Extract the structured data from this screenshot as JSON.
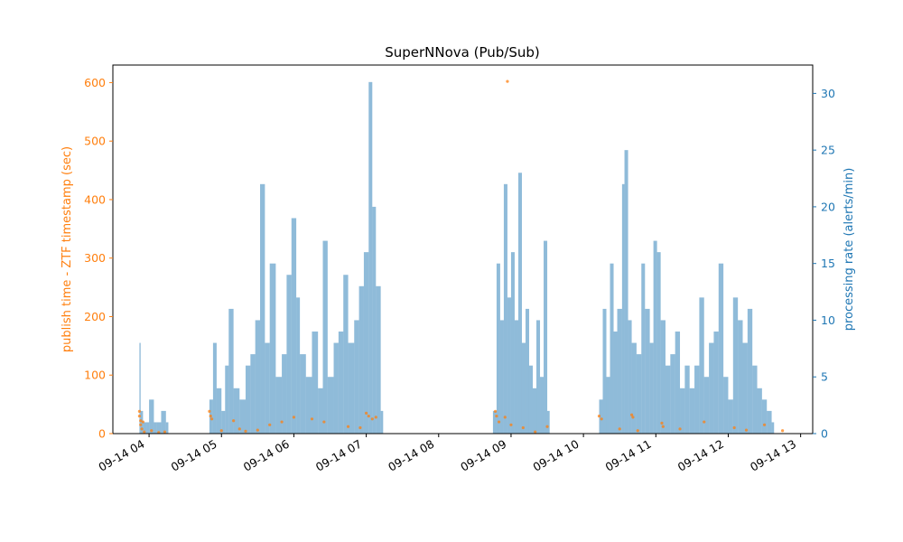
{
  "chart_data": {
    "type": "bar",
    "title": "SuperNNova (Pub/Sub)",
    "x_axis": {
      "kind": "time",
      "range": [
        "09-14 03:30",
        "09-14 13:10"
      ],
      "tick_labels": [
        "09-14 04",
        "09-14 05",
        "09-14 06",
        "09-14 07",
        "09-14 08",
        "09-14 09",
        "09-14 10",
        "09-14 11",
        "09-14 12",
        "09-14 13"
      ]
    },
    "y_left": {
      "label": "publish time - ZTF timestamp (sec)",
      "range": [
        0,
        630
      ],
      "ticks": [
        0,
        100,
        200,
        300,
        400,
        500,
        600
      ],
      "color": "#ff7f0e"
    },
    "y_right": {
      "label": "processing rate (alerts/min)",
      "range": [
        0,
        32.5
      ],
      "ticks": [
        0,
        5,
        10,
        15,
        20,
        25,
        30
      ],
      "color": "#1f77b4"
    },
    "series": [
      {
        "type": "scatter",
        "axis": "left",
        "color": "#ff7f0e",
        "points": [
          [
            "09-14 03:52",
            30
          ],
          [
            "09-14 03:52",
            38
          ],
          [
            "09-14 03:53",
            22
          ],
          [
            "09-14 03:53",
            15
          ],
          [
            "09-14 03:54",
            8
          ],
          [
            "09-14 03:55",
            20
          ],
          [
            "09-14 03:56",
            3
          ],
          [
            "09-14 04:02",
            5
          ],
          [
            "09-14 04:08",
            2
          ],
          [
            "09-14 04:13",
            3
          ],
          [
            "09-14 04:50",
            38
          ],
          [
            "09-14 04:51",
            30
          ],
          [
            "09-14 04:52",
            25
          ],
          [
            "09-14 05:00",
            5
          ],
          [
            "09-14 05:10",
            22
          ],
          [
            "09-14 05:15",
            8
          ],
          [
            "09-14 05:20",
            4
          ],
          [
            "09-14 05:30",
            6
          ],
          [
            "09-14 05:40",
            15
          ],
          [
            "09-14 05:50",
            20
          ],
          [
            "09-14 06:00",
            28
          ],
          [
            "09-14 06:15",
            25
          ],
          [
            "09-14 06:25",
            20
          ],
          [
            "09-14 06:45",
            12
          ],
          [
            "09-14 06:55",
            10
          ],
          [
            "09-14 07:00",
            35
          ],
          [
            "09-14 07:02",
            30
          ],
          [
            "09-14 07:05",
            25
          ],
          [
            "09-14 07:08",
            28
          ],
          [
            "09-14 08:47",
            38
          ],
          [
            "09-14 08:48",
            30
          ],
          [
            "09-14 08:50",
            20
          ],
          [
            "09-14 08:55",
            28
          ],
          [
            "09-14 08:57",
            602
          ],
          [
            "09-14 09:00",
            15
          ],
          [
            "09-14 09:10",
            10
          ],
          [
            "09-14 09:20",
            3
          ],
          [
            "09-14 09:30",
            12
          ],
          [
            "09-14 10:13",
            30
          ],
          [
            "09-14 10:15",
            25
          ],
          [
            "09-14 10:30",
            8
          ],
          [
            "09-14 10:40",
            32
          ],
          [
            "09-14 10:41",
            28
          ],
          [
            "09-14 10:45",
            5
          ],
          [
            "09-14 11:05",
            18
          ],
          [
            "09-14 11:06",
            12
          ],
          [
            "09-14 11:20",
            8
          ],
          [
            "09-14 11:40",
            20
          ],
          [
            "09-14 12:05",
            10
          ],
          [
            "09-14 12:15",
            6
          ],
          [
            "09-14 12:30",
            15
          ],
          [
            "09-14 12:45",
            5
          ]
        ]
      },
      {
        "type": "bar",
        "axis": "right",
        "color": "#1f77b4",
        "keyframes": [
          [
            "09-14 03:52",
            8
          ],
          [
            "09-14 03:53",
            2
          ],
          [
            "09-14 03:55",
            1
          ],
          [
            "09-14 03:58",
            1
          ],
          [
            "09-14 04:00",
            3
          ],
          [
            "09-14 04:04",
            1
          ],
          [
            "09-14 04:06",
            1
          ],
          [
            "09-14 04:10",
            2
          ],
          [
            "09-14 04:14",
            1
          ],
          [
            "09-14 04:50",
            3
          ],
          [
            "09-14 04:53",
            8
          ],
          [
            "09-14 04:56",
            4
          ],
          [
            "09-14 05:00",
            2
          ],
          [
            "09-14 05:03",
            6
          ],
          [
            "09-14 05:06",
            11
          ],
          [
            "09-14 05:10",
            4
          ],
          [
            "09-14 05:15",
            3
          ],
          [
            "09-14 05:20",
            6
          ],
          [
            "09-14 05:24",
            7
          ],
          [
            "09-14 05:28",
            10
          ],
          [
            "09-14 05:32",
            22
          ],
          [
            "09-14 05:36",
            8
          ],
          [
            "09-14 05:40",
            15
          ],
          [
            "09-14 05:45",
            5
          ],
          [
            "09-14 05:50",
            7
          ],
          [
            "09-14 05:54",
            14
          ],
          [
            "09-14 05:58",
            19
          ],
          [
            "09-14 06:02",
            12
          ],
          [
            "09-14 06:05",
            7
          ],
          [
            "09-14 06:10",
            5
          ],
          [
            "09-14 06:15",
            9
          ],
          [
            "09-14 06:20",
            4
          ],
          [
            "09-14 06:24",
            17
          ],
          [
            "09-14 06:28",
            5
          ],
          [
            "09-14 06:33",
            8
          ],
          [
            "09-14 06:37",
            9
          ],
          [
            "09-14 06:41",
            14
          ],
          [
            "09-14 06:45",
            8
          ],
          [
            "09-14 06:50",
            10
          ],
          [
            "09-14 06:54",
            13
          ],
          [
            "09-14 06:58",
            16
          ],
          [
            "09-14 07:02",
            31
          ],
          [
            "09-14 07:05",
            20
          ],
          [
            "09-14 07:08",
            13
          ],
          [
            "09-14 07:12",
            2
          ],
          [
            "09-14 08:45",
            2
          ],
          [
            "09-14 08:48",
            15
          ],
          [
            "09-14 08:51",
            10
          ],
          [
            "09-14 08:54",
            22
          ],
          [
            "09-14 08:57",
            12
          ],
          [
            "09-14 09:00",
            16
          ],
          [
            "09-14 09:03",
            10
          ],
          [
            "09-14 09:06",
            23
          ],
          [
            "09-14 09:09",
            8
          ],
          [
            "09-14 09:12",
            11
          ],
          [
            "09-14 09:15",
            6
          ],
          [
            "09-14 09:18",
            4
          ],
          [
            "09-14 09:21",
            10
          ],
          [
            "09-14 09:24",
            5
          ],
          [
            "09-14 09:27",
            17
          ],
          [
            "09-14 09:30",
            2
          ],
          [
            "09-14 10:13",
            3
          ],
          [
            "09-14 10:16",
            11
          ],
          [
            "09-14 10:19",
            5
          ],
          [
            "09-14 10:22",
            15
          ],
          [
            "09-14 10:25",
            9
          ],
          [
            "09-14 10:28",
            11
          ],
          [
            "09-14 10:32",
            22
          ],
          [
            "09-14 10:34",
            25
          ],
          [
            "09-14 10:37",
            10
          ],
          [
            "09-14 10:40",
            8
          ],
          [
            "09-14 10:44",
            7
          ],
          [
            "09-14 10:48",
            15
          ],
          [
            "09-14 10:51",
            11
          ],
          [
            "09-14 10:55",
            8
          ],
          [
            "09-14 10:58",
            17
          ],
          [
            "09-14 11:01",
            16
          ],
          [
            "09-14 11:04",
            10
          ],
          [
            "09-14 11:08",
            6
          ],
          [
            "09-14 11:12",
            7
          ],
          [
            "09-14 11:16",
            9
          ],
          [
            "09-14 11:20",
            4
          ],
          [
            "09-14 11:24",
            6
          ],
          [
            "09-14 11:28",
            4
          ],
          [
            "09-14 11:32",
            6
          ],
          [
            "09-14 11:36",
            12
          ],
          [
            "09-14 11:40",
            5
          ],
          [
            "09-14 11:44",
            8
          ],
          [
            "09-14 11:48",
            9
          ],
          [
            "09-14 11:52",
            15
          ],
          [
            "09-14 11:56",
            5
          ],
          [
            "09-14 12:00",
            3
          ],
          [
            "09-14 12:04",
            12
          ],
          [
            "09-14 12:08",
            10
          ],
          [
            "09-14 12:12",
            8
          ],
          [
            "09-14 12:16",
            11
          ],
          [
            "09-14 12:20",
            6
          ],
          [
            "09-14 12:24",
            4
          ],
          [
            "09-14 12:28",
            3
          ],
          [
            "09-14 12:32",
            2
          ],
          [
            "09-14 12:36",
            1
          ]
        ]
      }
    ]
  }
}
